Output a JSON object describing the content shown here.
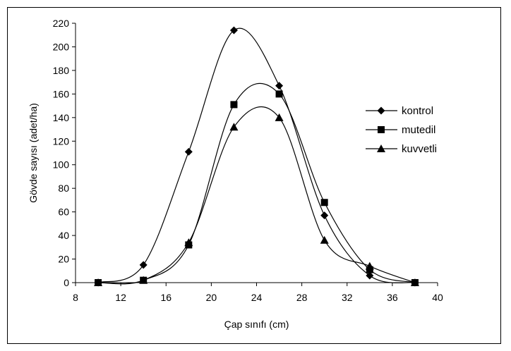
{
  "chart_data": {
    "type": "line",
    "title": "",
    "xlabel": "Çap sınıfı (cm)",
    "ylabel": "Gövde sayısı (adet/ha)",
    "xlim": [
      8,
      40
    ],
    "ylim": [
      0,
      220
    ],
    "x_ticks": [
      8,
      12,
      16,
      20,
      24,
      28,
      32,
      36,
      40
    ],
    "y_ticks": [
      0,
      20,
      40,
      60,
      80,
      100,
      120,
      140,
      160,
      180,
      200,
      220
    ],
    "x_tick_labels": [
      "8",
      "12",
      "16",
      "20",
      "24",
      "28",
      "32",
      "36",
      "40"
    ],
    "y_tick_labels": [
      "0",
      "20",
      "40",
      "60",
      "80",
      "100",
      "120",
      "140",
      "160",
      "180",
      "200",
      "220"
    ],
    "grid": false,
    "smooth": true,
    "legend_position": "right",
    "x": [
      10,
      14,
      18,
      22,
      26,
      30,
      34,
      38
    ],
    "series": [
      {
        "name": "kontrol",
        "marker": "diamond",
        "color": "#000000",
        "values": [
          0,
          15,
          111,
          214,
          167,
          57,
          6,
          0
        ]
      },
      {
        "name": "mutedil",
        "marker": "square",
        "color": "#000000",
        "values": [
          0,
          2,
          32,
          151,
          160,
          68,
          11,
          0
        ]
      },
      {
        "name": "kuvvetli",
        "marker": "triangle",
        "color": "#000000",
        "values": [
          0,
          2,
          34,
          132,
          140,
          36,
          14,
          0
        ]
      }
    ]
  }
}
